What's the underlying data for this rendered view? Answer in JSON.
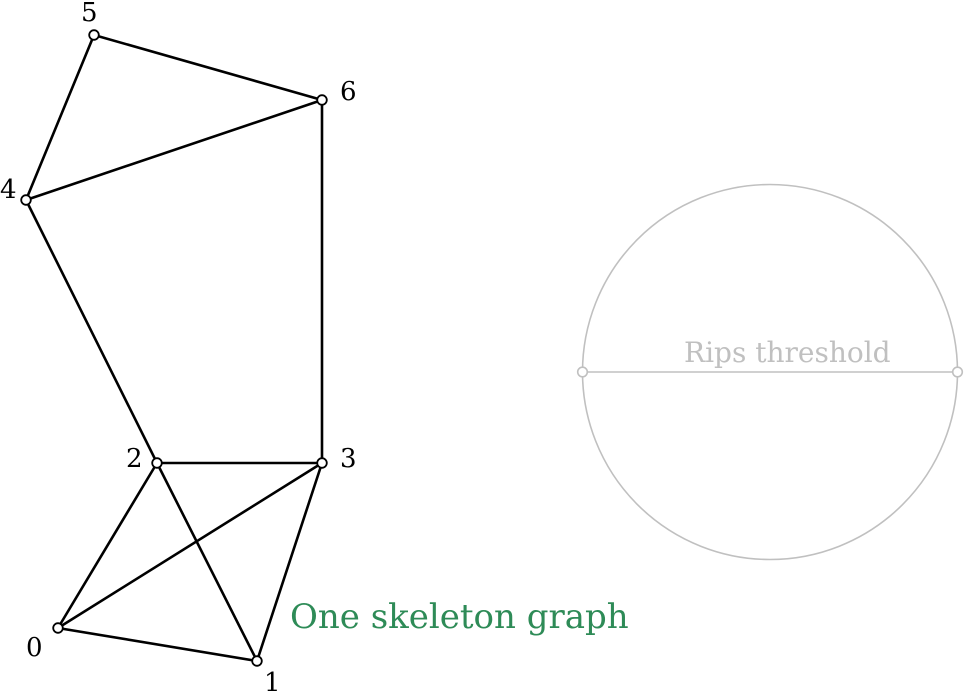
{
  "graph": {
    "vertices": [
      {
        "id": "v0",
        "label": "0"
      },
      {
        "id": "v1",
        "label": "1"
      },
      {
        "id": "v2",
        "label": "2"
      },
      {
        "id": "v3",
        "label": "3"
      },
      {
        "id": "v4",
        "label": "4"
      },
      {
        "id": "v5",
        "label": "5"
      },
      {
        "id": "v6",
        "label": "6"
      }
    ],
    "edges": [
      [
        "0",
        "1"
      ],
      [
        "0",
        "2"
      ],
      [
        "0",
        "3"
      ],
      [
        "1",
        "2"
      ],
      [
        "1",
        "3"
      ],
      [
        "2",
        "3"
      ],
      [
        "2",
        "4"
      ],
      [
        "3",
        "6"
      ],
      [
        "4",
        "5"
      ],
      [
        "4",
        "6"
      ],
      [
        "5",
        "6"
      ]
    ],
    "caption": "One skeleton graph",
    "caption_color": "#2e8b57"
  },
  "rips": {
    "label": "Rips threshold",
    "color": "#c0c0c0"
  }
}
